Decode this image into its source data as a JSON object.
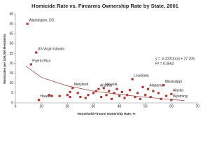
{
  "chart_data": {
    "type": "scatter",
    "title": "Homicide Rate vs. Firearms Ownership Rate by State, 2001",
    "x_label": "Household Firearm Ownership Rate, %",
    "y_label": "Homicides per 100,000 Residents",
    "xlim": [
      0,
      70
    ],
    "xticks": [
      0,
      10,
      20,
      30,
      40,
      50,
      60,
      70
    ],
    "ylim": [
      0,
      45
    ],
    "yticks": [
      0,
      5,
      10,
      15,
      20,
      25,
      30,
      35,
      40,
      45
    ],
    "color": "#b23a35",
    "x": [
      4.6,
      8,
      6,
      9,
      13,
      14,
      17,
      20,
      21,
      21,
      22,
      24,
      25,
      27,
      28,
      30,
      31,
      32,
      33,
      34,
      35,
      36,
      37,
      38,
      39,
      40,
      41,
      42,
      43,
      44,
      45,
      46,
      47,
      48,
      49,
      50,
      51,
      52,
      53,
      55,
      56,
      57,
      58,
      60,
      60
    ],
    "values": [
      40,
      25.5,
      19.5,
      1.5,
      4,
      3.5,
      3.5,
      4,
      5.5,
      3,
      7.5,
      5,
      3,
      2.5,
      4,
      5,
      6,
      7,
      3,
      7.5,
      4,
      6,
      2,
      5,
      7,
      3.5,
      5.5,
      2.5,
      4,
      6.5,
      12,
      3,
      5,
      2,
      8,
      4,
      7,
      3,
      6,
      5,
      2,
      9,
      3.5,
      4.5,
      1.5
    ],
    "labels": [
      "Washington, DC",
      "US Virgin Islands",
      "Puerto Rico",
      "Hawaii",
      null,
      null,
      null,
      null,
      null,
      null,
      "Maryland",
      null,
      null,
      null,
      null,
      null,
      null,
      "Arizona",
      null,
      "Nevada",
      null,
      null,
      null,
      null,
      null,
      null,
      null,
      null,
      null,
      null,
      "Louisiana",
      null,
      null,
      null,
      null,
      null,
      "Alabama",
      null,
      null,
      null,
      null,
      "Mississippi",
      null,
      "Alaska",
      "Wyoming"
    ],
    "trendline": {
      "color": "#8b3a30",
      "x": [
        4,
        10,
        20,
        30,
        40,
        50,
        60,
        65
      ],
      "values": [
        18.6,
        12.9,
        8.6,
        6.0,
        4.3,
        2.9,
        1.7,
        1.2
      ]
    },
    "annotations": [
      "y = -6.2221ln(x) + 27.205",
      "R² = 0.3562"
    ]
  }
}
